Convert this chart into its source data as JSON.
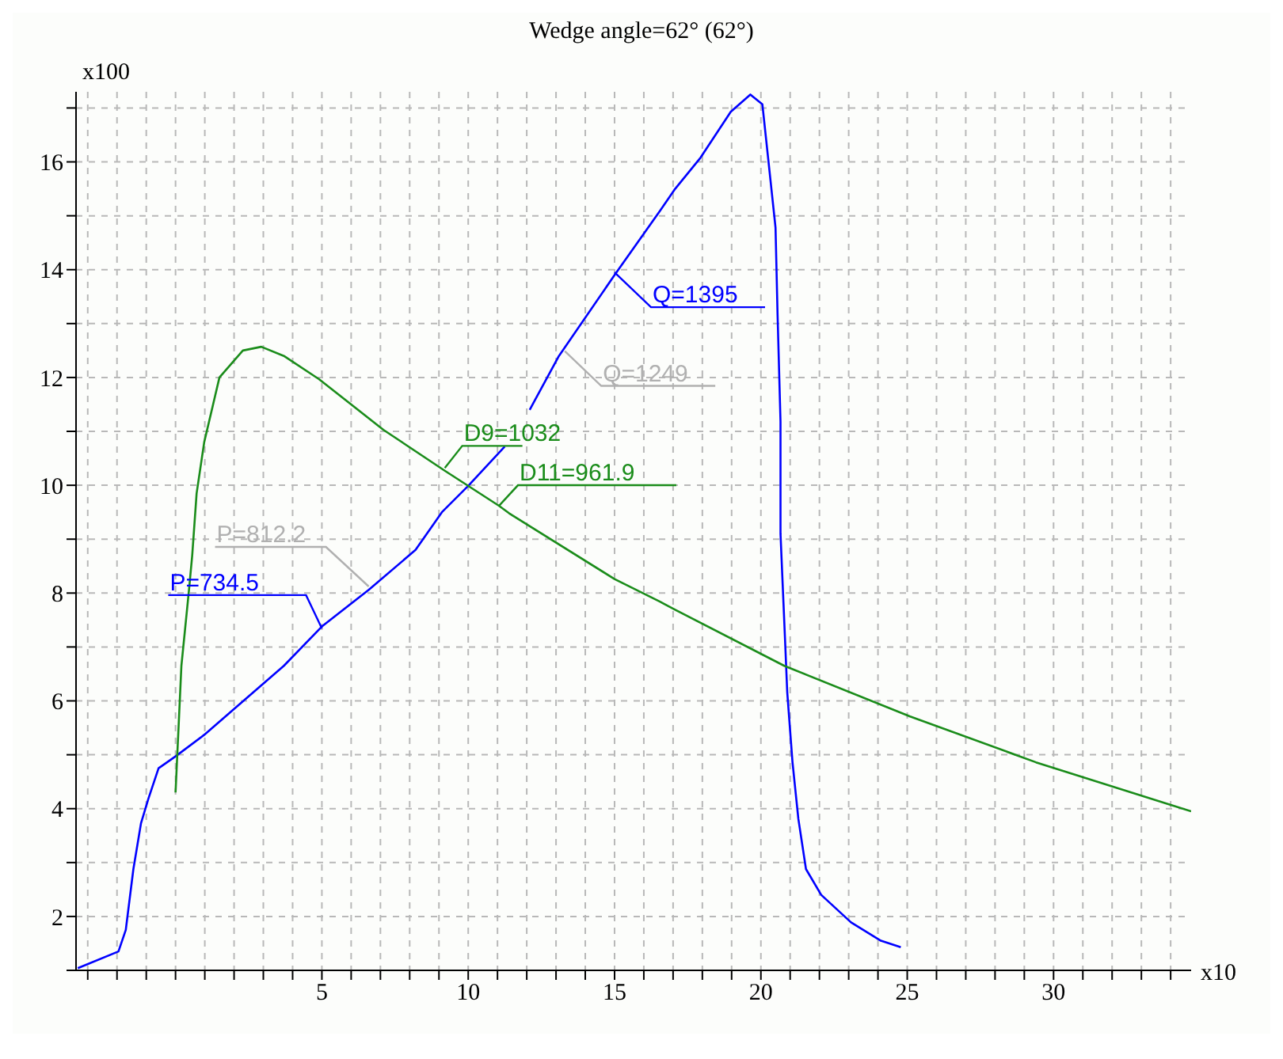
{
  "chart_data": {
    "type": "line",
    "title": "Wedge angle=62° (62°)",
    "xlabel": "x10",
    "ylabel": "x100",
    "xlim": [
      -3.4,
      34.7
    ],
    "ylim": [
      1,
      17.3
    ],
    "xticks": [
      {
        "value": -3,
        "label": null
      },
      {
        "value": -2,
        "label": null
      },
      {
        "value": -1,
        "label": null
      },
      {
        "value": 0,
        "label": null
      },
      {
        "value": 1,
        "label": null
      },
      {
        "value": 2,
        "label": null
      },
      {
        "value": 3,
        "label": null
      },
      {
        "value": 4,
        "label": null
      },
      5,
      {
        "value": 6,
        "label": null
      },
      {
        "value": 7,
        "label": null
      },
      {
        "value": 8,
        "label": null
      },
      {
        "value": 9,
        "label": null
      },
      10,
      {
        "value": 11,
        "label": null
      },
      {
        "value": 12,
        "label": null
      },
      {
        "value": 13,
        "label": null
      },
      {
        "value": 14,
        "label": null
      },
      15,
      {
        "value": 16,
        "label": null
      },
      {
        "value": 17,
        "label": null
      },
      {
        "value": 18,
        "label": null
      },
      {
        "value": 19,
        "label": null
      },
      20,
      {
        "value": 21,
        "label": null
      },
      {
        "value": 22,
        "label": null
      },
      {
        "value": 23,
        "label": null
      },
      {
        "value": 24,
        "label": null
      },
      25,
      {
        "value": 26,
        "label": null
      },
      {
        "value": 27,
        "label": null
      },
      {
        "value": 28,
        "label": null
      },
      {
        "value": 29,
        "label": null
      },
      30,
      {
        "value": 31,
        "label": null
      },
      {
        "value": 32,
        "label": null
      },
      {
        "value": 33,
        "label": null
      },
      {
        "value": 34,
        "label": null
      }
    ],
    "yticks": [
      {
        "value": 1,
        "label": null
      },
      2,
      {
        "value": 3,
        "label": null
      },
      4,
      {
        "value": 5,
        "label": null
      },
      6,
      {
        "value": 7,
        "label": null
      },
      8,
      {
        "value": 9,
        "label": null
      },
      10,
      {
        "value": 11,
        "label": null
      },
      12,
      {
        "value": 13,
        "label": null
      },
      14,
      {
        "value": 15,
        "label": null
      },
      16,
      {
        "value": 17,
        "label": null
      }
    ],
    "grid": true,
    "marker": "none",
    "series": [
      {
        "color": "#0000ff",
        "x": [
          -3.34,
          -1.95,
          -1.7,
          -1.44,
          -1.18,
          -0.93,
          -0.58,
          0,
          0.98,
          2.0,
          3.7,
          5.0,
          6.6,
          8.2,
          9.1,
          10.0,
          11.25,
          11.7,
          12.1,
          13.1,
          15.0,
          16.55,
          17.07,
          17.94,
          18.97,
          19.64,
          20.05,
          20.3,
          20.5,
          20.57,
          20.67,
          20.67,
          20.82,
          20.9,
          21.08,
          21.28,
          21.54,
          22.06,
          23.08,
          24.1,
          24.78
        ],
        "values": [
          1.04,
          1.35,
          1.75,
          2.88,
          3.73,
          4.18,
          4.75,
          4.97,
          5.37,
          5.85,
          6.65,
          7.38,
          8.06,
          8.8,
          9.5,
          9.99,
          10.72,
          null,
          11.4,
          12.4,
          13.9,
          15.09,
          15.5,
          16.08,
          16.93,
          17.25,
          17.07,
          15.8,
          14.78,
          13.16,
          11.18,
          9.1,
          7.2,
          6.16,
          4.86,
          3.81,
          2.88,
          2.4,
          1.89,
          1.55,
          1.43
        ]
      },
      {
        "color": "#1a8c1a",
        "x": [
          0,
          0.2,
          0.46,
          0.57,
          0.72,
          0.98,
          1.5,
          2.3,
          2.93,
          3.7,
          4.9,
          7.1,
          9.2,
          11.05,
          11.4,
          15.0,
          16.55,
          17.07,
          20.8,
          25.1,
          29.4,
          34.7
        ],
        "values": [
          4.3,
          6.65,
          8.06,
          8.7,
          9.85,
          10.8,
          12.0,
          12.5,
          12.57,
          12.4,
          11.97,
          11.03,
          10.27,
          9.62,
          9.48,
          8.26,
          7.84,
          7.69,
          6.65,
          5.71,
          4.86,
          3.95
        ]
      }
    ],
    "annotations": [
      {
        "text": "P=734.5",
        "x": 5.0,
        "y": 7.345
      },
      {
        "text": "P=812.2",
        "x": 6.6,
        "y": 8.122
      },
      {
        "text": "Q=1395",
        "x": 15.0,
        "y": 13.95
      },
      {
        "text": "Q=1249",
        "x": 13.3,
        "y": 12.49
      },
      {
        "text": "D9=1032",
        "x": 9.2,
        "y": 10.32
      },
      {
        "text": "D11=961.9",
        "x": 11.05,
        "y": 9.619
      }
    ]
  }
}
